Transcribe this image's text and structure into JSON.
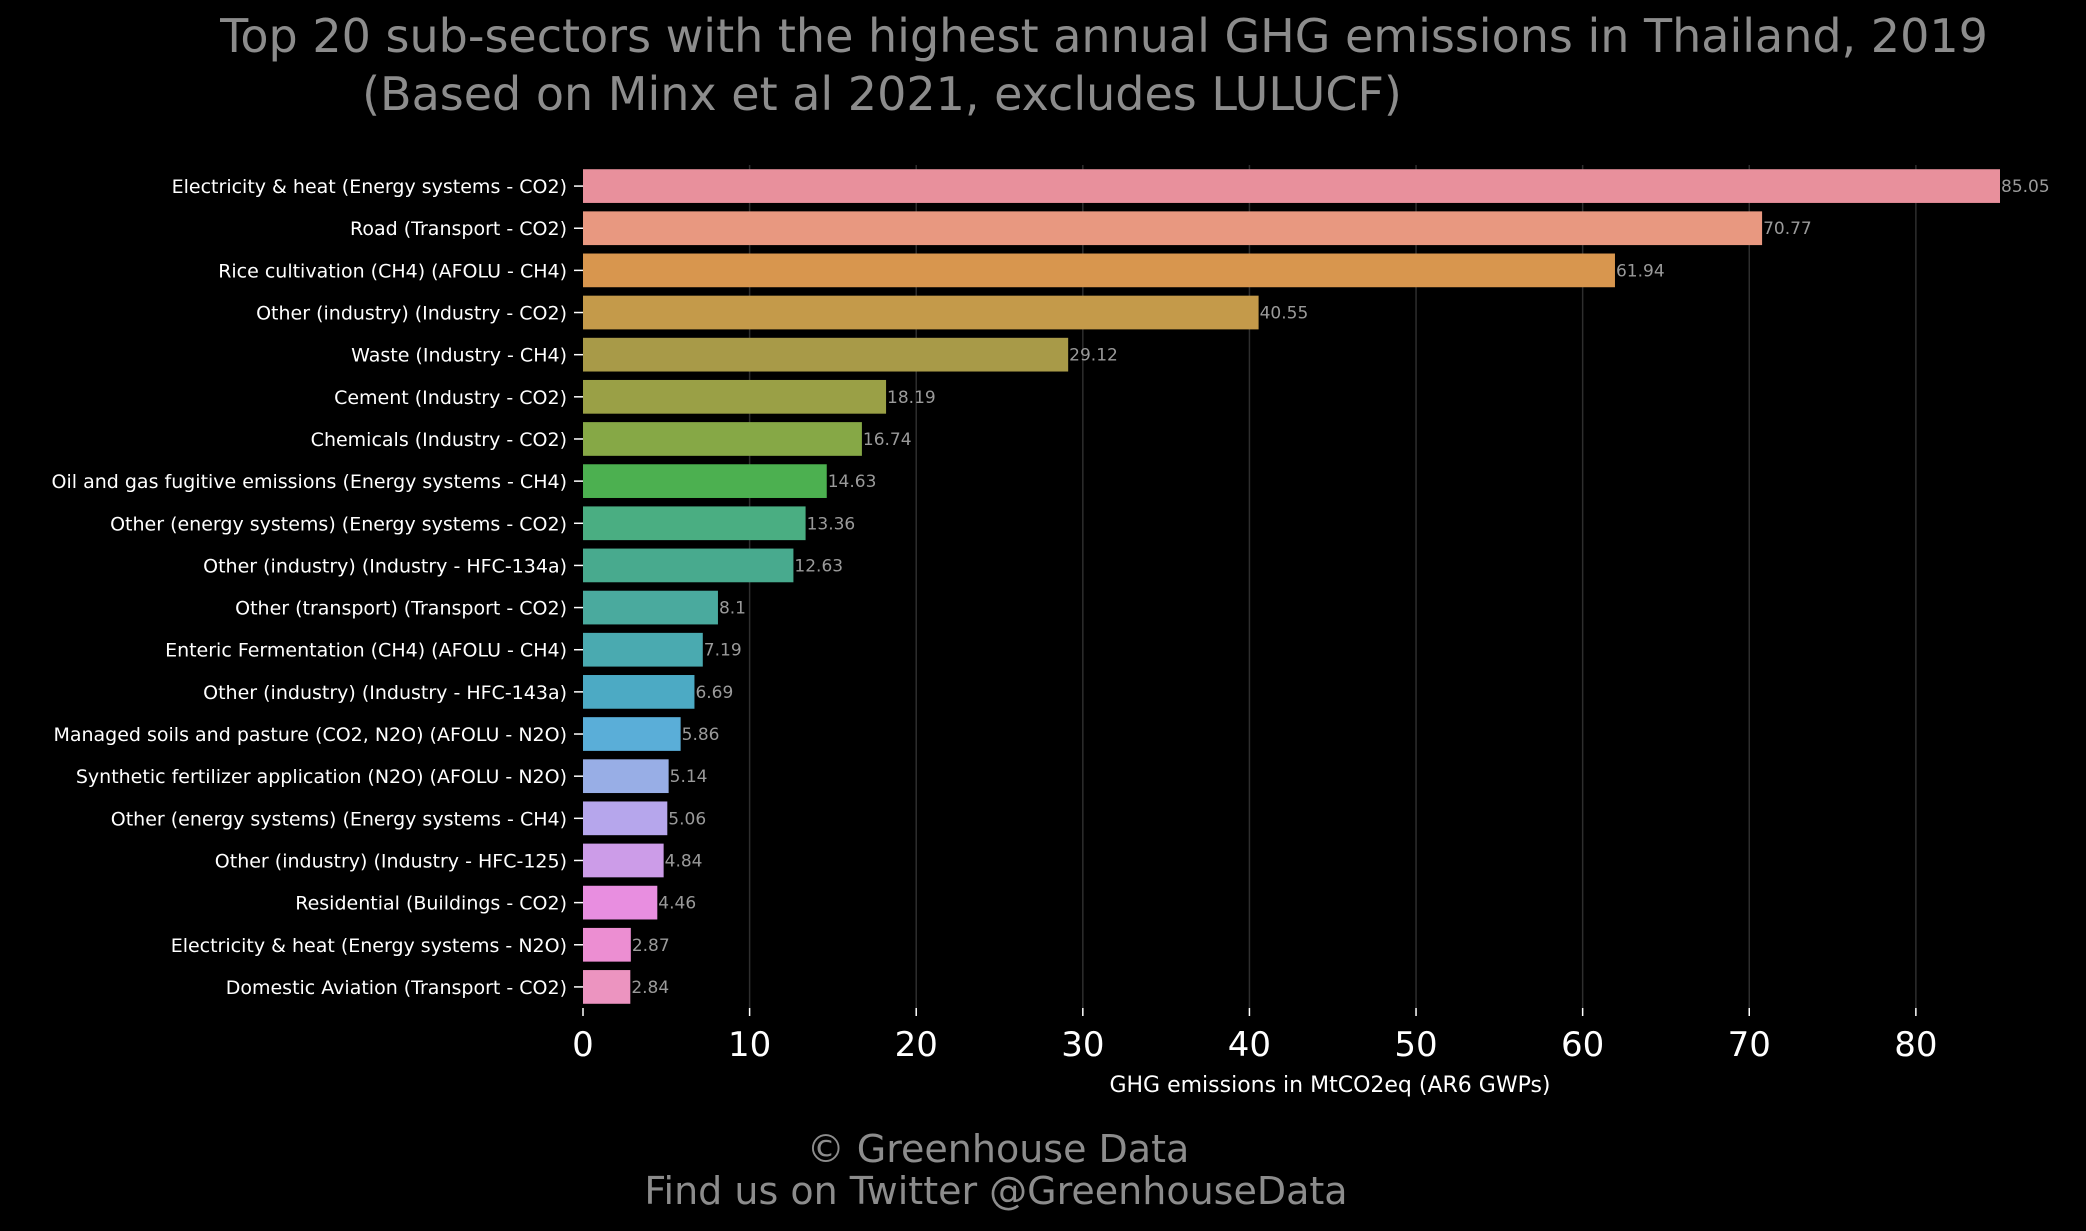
{
  "chart_data": {
    "type": "bar",
    "orientation": "horizontal",
    "title": "Top 20 sub-sectors with the highest annual GHG emissions in Thailand, 2019",
    "subtitle": "(Based on Minx et al 2021, excludes LULUCF)",
    "xlabel": "GHG emissions in MtCO2eq (AR6 GWPs)",
    "ylabel": "",
    "xlim": [
      0,
      85.05
    ],
    "xticks": [
      0,
      10,
      20,
      30,
      40,
      50,
      60,
      70,
      80
    ],
    "grid": "vertical",
    "categories": [
      "Electricity & heat (Energy systems - CO2)",
      "Road (Transport - CO2)",
      "Rice cultivation (CH4) (AFOLU - CH4)",
      "Other (industry) (Industry - CO2)",
      "Waste (Industry - CH4)",
      "Cement (Industry - CO2)",
      "Chemicals (Industry - CO2)",
      "Oil and gas fugitive emissions (Energy systems - CH4)",
      "Other (energy systems) (Energy systems - CO2)",
      "Other (industry) (Industry - HFC-134a)",
      "Other (transport) (Transport - CO2)",
      "Enteric Fermentation (CH4) (AFOLU - CH4)",
      "Other (industry) (Industry - HFC-143a)",
      "Managed soils and pasture (CO2, N2O) (AFOLU - N2O)",
      "Synthetic fertilizer application (N2O) (AFOLU - N2O)",
      "Other (energy systems) (Energy systems - CH4)",
      "Other (industry) (Industry - HFC-125)",
      "Residential (Buildings - CO2)",
      "Electricity & heat (Energy systems - N2O)",
      "Domestic Aviation (Transport - CO2)"
    ],
    "values": [
      85.05,
      70.77,
      61.94,
      40.55,
      29.12,
      18.19,
      16.74,
      14.63,
      13.36,
      12.63,
      8.1,
      7.19,
      6.69,
      5.86,
      5.14,
      5.06,
      4.84,
      4.46,
      2.87,
      2.84
    ],
    "value_labels": [
      "85.05",
      "70.77",
      "61.94",
      "40.55",
      "29.12",
      "18.19",
      "16.74",
      "14.63",
      "13.36",
      "12.63",
      "8.1",
      "7.19",
      "6.69",
      "5.86",
      "5.14",
      "5.06",
      "4.84",
      "4.46",
      "2.87",
      "2.84"
    ],
    "colors": [
      "#e8909c",
      "#e89880",
      "#d8964e",
      "#c49a4a",
      "#a89a48",
      "#9aa046",
      "#86a846",
      "#4cb050",
      "#4aae82",
      "#48aa8e",
      "#4aaa9e",
      "#4aaab0",
      "#4caac4",
      "#5aaed8",
      "#98aee6",
      "#b6a6ec",
      "#cc9ce8",
      "#e88ee0",
      "#ec8ed2",
      "#ec94c0"
    ]
  },
  "footer": {
    "credit": "© Greenhouse Data",
    "social": "Find us on Twitter @GreenhouseData"
  }
}
